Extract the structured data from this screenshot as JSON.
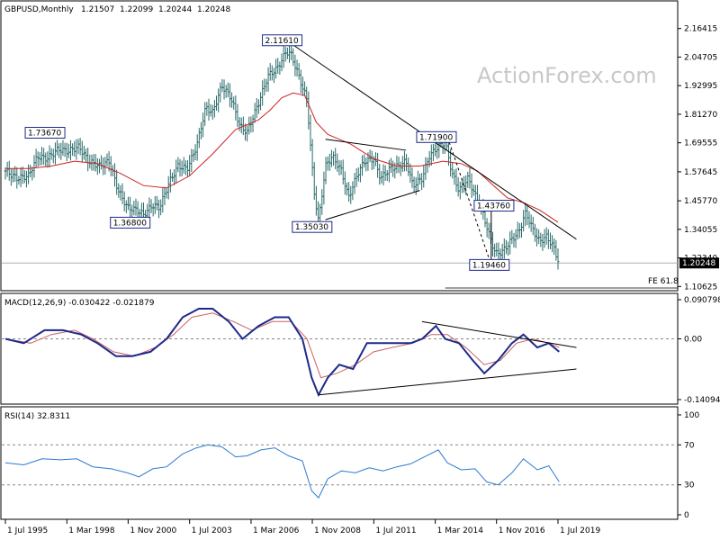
{
  "watermark": "ActionForex.com",
  "chart_data": [
    {
      "type": "candlestick",
      "title": "GBPUSD,Monthly",
      "ohlc_header": {
        "open": "1.21507",
        "high": "1.22099",
        "low": "1.20244",
        "close": "1.20248"
      },
      "last_price": "1.20248",
      "ylim": [
        1.1,
        2.2
      ],
      "y_ticks": [
        "2.16415",
        "2.04705",
        "1.92995",
        "1.81270",
        "1.69555",
        "1.57645",
        "1.45770",
        "1.34055",
        "1.22340",
        "1.10625"
      ],
      "x_ticks": [
        "1 Jul 1995",
        "1 Mar 1998",
        "1 Nov 2000",
        "1 Jul 2003",
        "1 Mar 2006",
        "1 Nov 2008",
        "1 Jul 2011",
        "1 Mar 2014",
        "1 Nov 2016",
        "1 Jul 2019"
      ],
      "x_range": [
        1995.5,
        2019.5
      ],
      "price_path": [
        [
          1995.5,
          1.58
        ],
        [
          1996.0,
          1.55
        ],
        [
          1996.5,
          1.56
        ],
        [
          1996.9,
          1.64
        ],
        [
          1997.3,
          1.63
        ],
        [
          1997.8,
          1.67
        ],
        [
          1998.2,
          1.66
        ],
        [
          1998.7,
          1.68
        ],
        [
          1999.1,
          1.62
        ],
        [
          1999.6,
          1.6
        ],
        [
          2000.0,
          1.62
        ],
        [
          2000.4,
          1.5
        ],
        [
          2000.8,
          1.43
        ],
        [
          2001.2,
          1.42
        ],
        [
          2001.5,
          1.4
        ],
        [
          2001.9,
          1.44
        ],
        [
          2002.2,
          1.43
        ],
        [
          2002.6,
          1.53
        ],
        [
          2003.0,
          1.6
        ],
        [
          2003.4,
          1.59
        ],
        [
          2003.8,
          1.68
        ],
        [
          2004.2,
          1.84
        ],
        [
          2004.5,
          1.82
        ],
        [
          2004.9,
          1.93
        ],
        [
          2005.3,
          1.88
        ],
        [
          2005.7,
          1.76
        ],
        [
          2006.0,
          1.74
        ],
        [
          2006.5,
          1.86
        ],
        [
          2006.9,
          1.97
        ],
        [
          2007.3,
          2.0
        ],
        [
          2007.7,
          2.07
        ],
        [
          2007.9,
          2.06
        ],
        [
          2008.2,
          1.98
        ],
        [
          2008.6,
          1.87
        ],
        [
          2008.9,
          1.5
        ],
        [
          2009.1,
          1.37
        ],
        [
          2009.4,
          1.6
        ],
        [
          2009.7,
          1.64
        ],
        [
          2010.1,
          1.58
        ],
        [
          2010.4,
          1.47
        ],
        [
          2010.8,
          1.57
        ],
        [
          2011.1,
          1.62
        ],
        [
          2011.5,
          1.63
        ],
        [
          2011.8,
          1.55
        ],
        [
          2012.2,
          1.59
        ],
        [
          2012.6,
          1.6
        ],
        [
          2012.9,
          1.62
        ],
        [
          2013.2,
          1.52
        ],
        [
          2013.6,
          1.55
        ],
        [
          2013.9,
          1.64
        ],
        [
          2014.3,
          1.68
        ],
        [
          2014.6,
          1.7
        ],
        [
          2014.9,
          1.57
        ],
        [
          2015.2,
          1.5
        ],
        [
          2015.6,
          1.55
        ],
        [
          2015.9,
          1.48
        ],
        [
          2016.2,
          1.42
        ],
        [
          2016.5,
          1.32
        ],
        [
          2016.8,
          1.24
        ],
        [
          2017.1,
          1.25
        ],
        [
          2017.5,
          1.3
        ],
        [
          2017.8,
          1.33
        ],
        [
          2018.1,
          1.41
        ],
        [
          2018.4,
          1.34
        ],
        [
          2018.7,
          1.29
        ],
        [
          2019.0,
          1.31
        ],
        [
          2019.3,
          1.27
        ],
        [
          2019.55,
          1.2
        ]
      ],
      "ma_path": [
        [
          1995.5,
          1.59
        ],
        [
          1996.5,
          1.59
        ],
        [
          1997.5,
          1.6
        ],
        [
          1998.5,
          1.62
        ],
        [
          1999.5,
          1.61
        ],
        [
          2000.5,
          1.57
        ],
        [
          2001.5,
          1.52
        ],
        [
          2002.5,
          1.51
        ],
        [
          2003.5,
          1.56
        ],
        [
          2004.5,
          1.65
        ],
        [
          2005.5,
          1.75
        ],
        [
          2006.5,
          1.79
        ],
        [
          2007.0,
          1.83
        ],
        [
          2007.5,
          1.88
        ],
        [
          2008.0,
          1.9
        ],
        [
          2008.5,
          1.89
        ],
        [
          2009.0,
          1.78
        ],
        [
          2009.5,
          1.73
        ],
        [
          2010.5,
          1.69
        ],
        [
          2011.5,
          1.63
        ],
        [
          2012.5,
          1.6
        ],
        [
          2013.5,
          1.6
        ],
        [
          2014.5,
          1.62
        ],
        [
          2015.3,
          1.61
        ],
        [
          2016.0,
          1.58
        ],
        [
          2016.7,
          1.52
        ],
        [
          2017.3,
          1.47
        ],
        [
          2018.0,
          1.45
        ],
        [
          2018.7,
          1.42
        ],
        [
          2019.5,
          1.37
        ]
      ],
      "price_labels": [
        {
          "text": "2.11610",
          "x": 2007.6,
          "y": 2.116
        },
        {
          "text": "1.73670",
          "x": 1997.3,
          "y": 1.7367
        },
        {
          "text": "1.36800",
          "x": 2001.0,
          "y": 1.368
        },
        {
          "text": "1.35030",
          "x": 2008.9,
          "y": 1.3503
        },
        {
          "text": "1.71900",
          "x": 2014.3,
          "y": 1.719
        },
        {
          "text": "1.43760",
          "x": 2016.8,
          "y": 1.4376
        },
        {
          "text": "1.19460",
          "x": 2016.6,
          "y": 1.1946
        }
      ],
      "trendlines": [
        {
          "from": [
            2007.7,
            2.116
          ],
          "to": [
            2020.3,
            1.3
          ]
        },
        {
          "from": [
            2009.4,
            1.38
          ],
          "to": [
            2013.5,
            1.5
          ]
        },
        {
          "from": [
            2009.4,
            1.71
          ],
          "to": [
            2012.9,
            1.665
          ]
        },
        {
          "from": [
            2016.6,
            1.195
          ],
          "to": [
            2016.6,
            1.44
          ]
        },
        {
          "from": [
            2014.7,
            1.719
          ],
          "to": [
            2016.6,
            1.195
          ],
          "dashed": true
        }
      ],
      "fe_label": "FE 61.8",
      "fe_level": 1.1
    },
    {
      "type": "line",
      "title": "MACD(12,26,9) -0.030422 -0.021879",
      "ylim": [
        -0.14094,
        0.090798
      ],
      "y_ticks": [
        "0.090798",
        "0.00",
        "-0.14094"
      ],
      "zero_line": 0,
      "macd_path": [
        [
          1995.5,
          0.0
        ],
        [
          1996.3,
          -0.01
        ],
        [
          1997.2,
          0.02
        ],
        [
          1998.0,
          0.02
        ],
        [
          1998.8,
          0.01
        ],
        [
          1999.5,
          -0.01
        ],
        [
          2000.3,
          -0.04
        ],
        [
          2001.0,
          -0.04
        ],
        [
          2001.8,
          -0.03
        ],
        [
          2002.5,
          0.0
        ],
        [
          2003.2,
          0.05
        ],
        [
          2003.9,
          0.07
        ],
        [
          2004.5,
          0.07
        ],
        [
          2005.2,
          0.04
        ],
        [
          2005.8,
          0.0
        ],
        [
          2006.5,
          0.03
        ],
        [
          2007.2,
          0.05
        ],
        [
          2007.8,
          0.05
        ],
        [
          2008.4,
          0.0
        ],
        [
          2008.8,
          -0.09
        ],
        [
          2009.1,
          -0.13
        ],
        [
          2009.5,
          -0.09
        ],
        [
          2010.0,
          -0.06
        ],
        [
          2010.6,
          -0.07
        ],
        [
          2011.2,
          -0.01
        ],
        [
          2011.8,
          -0.01
        ],
        [
          2012.4,
          -0.01
        ],
        [
          2013.1,
          -0.01
        ],
        [
          2013.6,
          0.0
        ],
        [
          2014.2,
          0.03
        ],
        [
          2014.6,
          0.0
        ],
        [
          2015.2,
          -0.01
        ],
        [
          2015.8,
          -0.05
        ],
        [
          2016.3,
          -0.08
        ],
        [
          2016.9,
          -0.05
        ],
        [
          2017.5,
          -0.01
        ],
        [
          2018.0,
          0.01
        ],
        [
          2018.6,
          -0.02
        ],
        [
          2019.1,
          -0.01
        ],
        [
          2019.55,
          -0.03
        ]
      ],
      "signal_path": [
        [
          1995.5,
          0.0
        ],
        [
          1996.6,
          -0.01
        ],
        [
          1997.5,
          0.01
        ],
        [
          1998.5,
          0.02
        ],
        [
          1999.3,
          0.0
        ],
        [
          2000.2,
          -0.03
        ],
        [
          2001.1,
          -0.04
        ],
        [
          2002.0,
          -0.02
        ],
        [
          2002.8,
          0.01
        ],
        [
          2003.6,
          0.05
        ],
        [
          2004.5,
          0.06
        ],
        [
          2005.4,
          0.04
        ],
        [
          2006.2,
          0.02
        ],
        [
          2007.1,
          0.04
        ],
        [
          2007.9,
          0.04
        ],
        [
          2008.6,
          0.0
        ],
        [
          2009.2,
          -0.09
        ],
        [
          2009.9,
          -0.08
        ],
        [
          2010.7,
          -0.06
        ],
        [
          2011.5,
          -0.03
        ],
        [
          2012.3,
          -0.02
        ],
        [
          2013.2,
          -0.01
        ],
        [
          2014.0,
          0.01
        ],
        [
          2014.7,
          0.01
        ],
        [
          2015.5,
          -0.02
        ],
        [
          2016.3,
          -0.06
        ],
        [
          2017.0,
          -0.05
        ],
        [
          2017.7,
          -0.01
        ],
        [
          2018.4,
          0.0
        ],
        [
          2019.1,
          -0.01
        ],
        [
          2019.55,
          -0.02
        ]
      ],
      "trendlines": [
        {
          "from": [
            2009.1,
            -0.13
          ],
          "to": [
            2020.3,
            -0.07
          ]
        },
        {
          "from": [
            2013.6,
            0.04
          ],
          "to": [
            2020.3,
            -0.02
          ]
        }
      ]
    },
    {
      "type": "line",
      "title": "RSI(14) 32.8311",
      "ylim": [
        0,
        100
      ],
      "y_ticks": [
        "100",
        "70",
        "30",
        "0"
      ],
      "levels": [
        70,
        30
      ],
      "rsi_path": [
        [
          1995.5,
          52
        ],
        [
          1996.3,
          50
        ],
        [
          1997.1,
          56
        ],
        [
          1997.9,
          55
        ],
        [
          1998.6,
          56
        ],
        [
          1999.3,
          48
        ],
        [
          2000.1,
          46
        ],
        [
          2000.8,
          42
        ],
        [
          2001.3,
          38
        ],
        [
          2001.9,
          46
        ],
        [
          2002.5,
          48
        ],
        [
          2003.2,
          61
        ],
        [
          2003.8,
          67
        ],
        [
          2004.3,
          70
        ],
        [
          2004.9,
          68
        ],
        [
          2005.5,
          58
        ],
        [
          2006.0,
          59
        ],
        [
          2006.6,
          65
        ],
        [
          2007.2,
          67
        ],
        [
          2007.8,
          59
        ],
        [
          2008.4,
          54
        ],
        [
          2008.8,
          24
        ],
        [
          2009.1,
          17
        ],
        [
          2009.5,
          36
        ],
        [
          2010.1,
          44
        ],
        [
          2010.7,
          42
        ],
        [
          2011.3,
          47
        ],
        [
          2011.9,
          44
        ],
        [
          2012.5,
          48
        ],
        [
          2013.1,
          51
        ],
        [
          2013.7,
          58
        ],
        [
          2014.3,
          65
        ],
        [
          2014.7,
          52
        ],
        [
          2015.3,
          45
        ],
        [
          2015.9,
          46
        ],
        [
          2016.4,
          33
        ],
        [
          2016.9,
          30
        ],
        [
          2017.5,
          42
        ],
        [
          2018.0,
          56
        ],
        [
          2018.6,
          45
        ],
        [
          2019.1,
          49
        ],
        [
          2019.55,
          33
        ]
      ]
    }
  ]
}
